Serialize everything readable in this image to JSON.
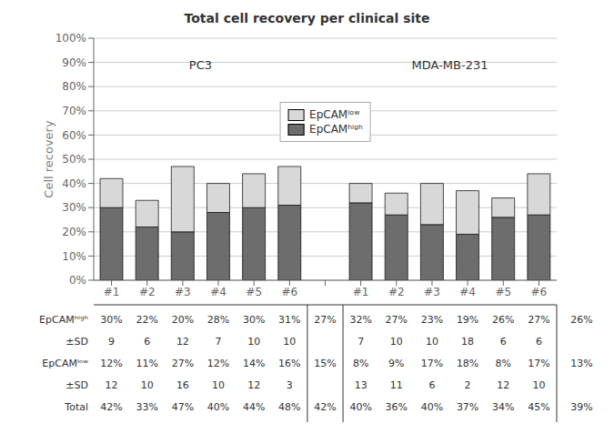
{
  "chart_data": {
    "type": "bar",
    "title": "Total cell recovery per clinical site",
    "y_label": "Cell recovery",
    "stacked": true,
    "grid": true,
    "legend": "center",
    "groups": [
      "PC3",
      "MDA-MB-231"
    ],
    "categories": [
      "#1",
      "#2",
      "#3",
      "#4",
      "#5",
      "#6",
      null,
      "#1",
      "#2",
      "#3",
      "#4",
      "#5",
      "#6"
    ],
    "ylim": [
      0,
      100
    ],
    "yticks": [
      {
        "value": 0,
        "label": "0%"
      },
      {
        "value": 10,
        "label": "10%"
      },
      {
        "value": 20,
        "label": "20%"
      },
      {
        "value": 30,
        "label": "30%"
      },
      {
        "value": 40,
        "label": "40%"
      },
      {
        "value": 50,
        "label": "50%"
      },
      {
        "value": 60,
        "label": "60%"
      },
      {
        "value": 70,
        "label": "70%"
      },
      {
        "value": 80,
        "label": "80%"
      },
      {
        "value": 90,
        "label": "90%"
      },
      {
        "value": 100,
        "label": "100%"
      }
    ],
    "series": [
      {
        "name": "EpCAMʰⁱᵍʰ",
        "color": "#6d6d6d",
        "values": [
          30,
          22,
          20,
          28,
          30,
          31,
          null,
          32,
          27,
          23,
          19,
          26,
          27
        ],
        "value_labels": [
          "30%",
          "22%",
          "20%",
          "28%",
          "30%",
          "31%",
          null,
          "32%",
          "27%",
          "23%",
          "19%",
          "26%",
          "27%"
        ],
        "sd": [
          9,
          6,
          12,
          7,
          10,
          10,
          null,
          7,
          10,
          10,
          18,
          6,
          6
        ],
        "averages": [
          27,
          26
        ],
        "average_labels": [
          "27%",
          "26%"
        ]
      },
      {
        "name": "EpCAMˡᵒʷ",
        "color": "#d8d8d8",
        "values": [
          12,
          11,
          27,
          12,
          14,
          16,
          null,
          8,
          9,
          17,
          18,
          8,
          17
        ],
        "value_labels": [
          "12%",
          "11%",
          "27%",
          "12%",
          "14%",
          "16%",
          null,
          "8%",
          "9%",
          "17%",
          "18%",
          "8%",
          "17%"
        ],
        "sd": [
          12,
          10,
          16,
          10,
          12,
          3,
          null,
          13,
          11,
          6,
          2,
          12,
          10
        ],
        "averages": [
          15,
          13
        ],
        "average_labels": [
          "15%",
          "13%"
        ]
      }
    ],
    "sd_label": "±SD",
    "total_label": "Total",
    "totals": [
      42,
      33,
      47,
      40,
      44,
      48,
      null,
      40,
      36,
      40,
      37,
      34,
      45
    ],
    "total_labels": [
      "42%",
      "33%",
      "47%",
      "40%",
      "44%",
      "48%",
      null,
      "40%",
      "36%",
      "40%",
      "37%",
      "34%",
      "45%"
    ],
    "average_totals": [
      42,
      39
    ],
    "average_total_labels": [
      "42%",
      "39%"
    ]
  }
}
